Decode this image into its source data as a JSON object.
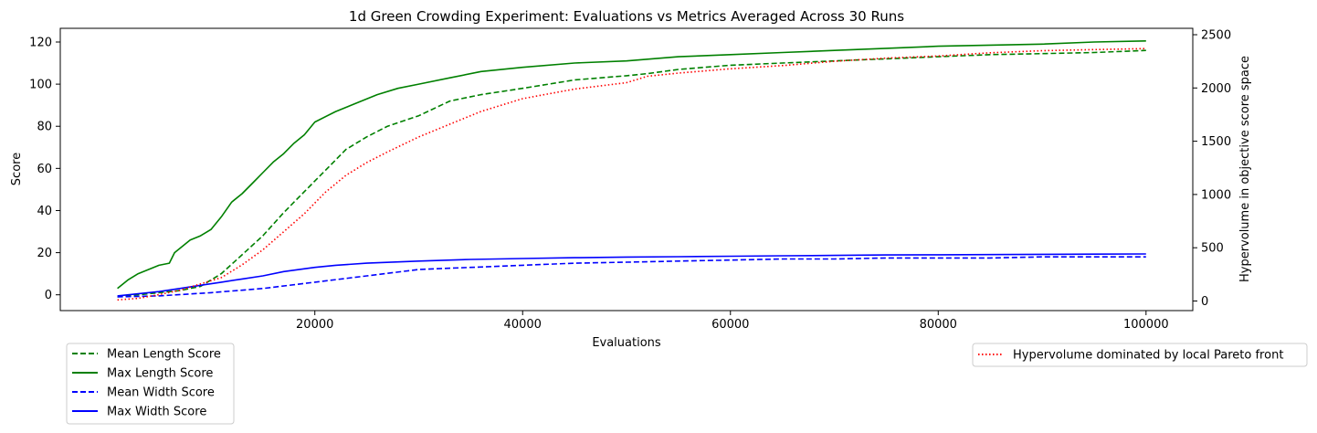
{
  "chart_data": {
    "type": "line",
    "title": "1d Green Crowding Experiment: Evaluations vs Metrics Averaged Across 30 Runs",
    "xlabel": "Evaluations",
    "ylabel": "Score",
    "ylabel_right": "Hypervolume in objective score space",
    "xlim": [
      -4500,
      104500
    ],
    "ylim": [
      -7.5,
      126.5
    ],
    "ylim_right": [
      -90,
      2560
    ],
    "x_ticks": [
      20000,
      40000,
      60000,
      80000,
      100000
    ],
    "x_tick_labels": [
      "20000",
      "40000",
      "60000",
      "80000",
      "100000"
    ],
    "y_ticks": [
      0,
      20,
      40,
      60,
      80,
      100,
      120
    ],
    "y_tick_labels": [
      "0",
      "20",
      "40",
      "60",
      "80",
      "100",
      "120"
    ],
    "y_right_ticks": [
      0,
      500,
      1000,
      1500,
      2000,
      2500
    ],
    "y_right_tick_labels": [
      "0",
      "500",
      "1000",
      "1500",
      "2000",
      "2500"
    ],
    "grid": false,
    "legend_left_placement": "below-left",
    "legend_right_placement": "below-right",
    "series": [
      {
        "name": "Mean Length Score",
        "axis": "left",
        "color": "#008000",
        "style": "dashed",
        "x": [
          1000,
          3000,
          5000,
          7000,
          9000,
          11000,
          13000,
          15000,
          17000,
          19000,
          21000,
          23000,
          25000,
          27000,
          30000,
          33000,
          36000,
          40000,
          45000,
          50000,
          52000,
          55000,
          60000,
          65000,
          70000,
          75000,
          80000,
          85000,
          90000,
          95000,
          100000
        ],
        "values": [
          -1,
          0,
          1,
          2,
          4,
          10,
          19,
          28,
          39,
          49,
          59,
          69,
          75,
          80,
          85,
          92,
          95,
          98,
          102,
          104,
          105,
          107,
          109,
          110,
          111,
          112,
          113,
          114,
          114.5,
          115,
          116
        ]
      },
      {
        "name": "Max Length Score",
        "axis": "left",
        "color": "#008000",
        "style": "solid",
        "x": [
          1000,
          2000,
          3000,
          4000,
          5000,
          6000,
          6500,
          7000,
          8000,
          9000,
          10000,
          11000,
          12000,
          13000,
          14000,
          15000,
          16000,
          17000,
          18000,
          19000,
          20000,
          22000,
          24000,
          26000,
          28000,
          30000,
          33000,
          36000,
          40000,
          45000,
          50000,
          55000,
          60000,
          65000,
          70000,
          75000,
          80000,
          85000,
          90000,
          95000,
          100000
        ],
        "values": [
          3,
          7,
          10,
          12,
          14,
          15,
          20,
          22,
          26,
          28,
          31,
          37,
          44,
          48,
          53,
          58,
          63,
          67,
          72,
          76,
          82,
          87,
          91,
          95,
          98,
          100,
          103,
          106,
          108,
          110,
          111,
          113,
          114,
          115,
          116,
          117,
          118,
          118.5,
          119,
          120,
          120.5
        ]
      },
      {
        "name": "Mean Width Score",
        "axis": "left",
        "color": "#0000ff",
        "style": "dashed",
        "x": [
          1000,
          5000,
          10000,
          15000,
          20000,
          25000,
          30000,
          35000,
          40000,
          45000,
          50000,
          55000,
          60000,
          65000,
          70000,
          75000,
          80000,
          85000,
          90000,
          95000,
          100000
        ],
        "values": [
          -1,
          -0.5,
          1,
          3,
          6,
          9,
          12,
          13,
          14,
          15,
          15.5,
          16,
          16.5,
          17,
          17,
          17.5,
          17.5,
          17.5,
          18,
          18,
          18
        ]
      },
      {
        "name": "Max Width Score",
        "axis": "left",
        "color": "#0000ff",
        "style": "solid",
        "x": [
          1000,
          3000,
          5000,
          7000,
          9000,
          11000,
          13000,
          15000,
          17000,
          20000,
          22000,
          25000,
          30000,
          35000,
          40000,
          45000,
          50000,
          55000,
          60000,
          65000,
          70000,
          75000,
          80000,
          85000,
          90000,
          95000,
          100000
        ],
        "values": [
          -0.5,
          0.5,
          1.5,
          3,
          4.5,
          6,
          7.5,
          9,
          11,
          13,
          14,
          15,
          16,
          16.8,
          17.2,
          17.6,
          17.9,
          18.1,
          18.3,
          18.5,
          18.7,
          18.9,
          19,
          19.1,
          19.2,
          19.3,
          19.4
        ]
      },
      {
        "name": "Hypervolume dominated by local Pareto front",
        "axis": "right",
        "color": "#ff0000",
        "style": "dotted",
        "x": [
          1000,
          3000,
          5000,
          7000,
          9000,
          11000,
          13000,
          15000,
          17000,
          19000,
          21000,
          23000,
          25000,
          27000,
          30000,
          33000,
          36000,
          40000,
          45000,
          50000,
          52000,
          55000,
          60000,
          65000,
          70000,
          75000,
          80000,
          85000,
          90000,
          95000,
          100000
        ],
        "values": [
          10,
          25,
          60,
          100,
          160,
          220,
          340,
          480,
          650,
          820,
          1020,
          1180,
          1300,
          1400,
          1540,
          1660,
          1780,
          1900,
          1990,
          2050,
          2110,
          2140,
          2180,
          2210,
          2250,
          2280,
          2300,
          2330,
          2350,
          2360,
          2370
        ]
      }
    ]
  }
}
